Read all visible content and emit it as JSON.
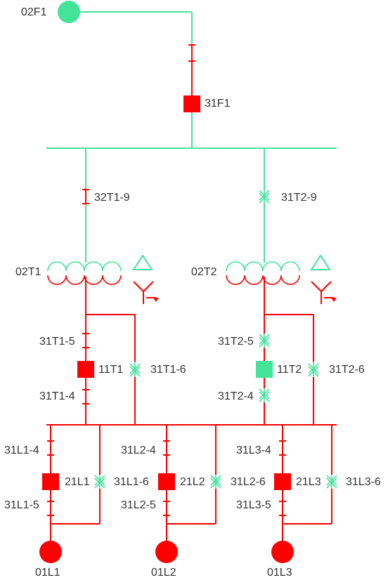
{
  "colors": {
    "energized": "#44e39a",
    "deenergized": "#ff0000",
    "text": "#333333",
    "switch_open": "#ff0000",
    "switch_closed": "#44e39a"
  },
  "labels": {
    "source": "02F1",
    "main_breaker": "31F1",
    "t1_hv_switch": "32T1-9",
    "t2_hv_switch": "31T2-9",
    "t1": "02T1",
    "t2": "02T2",
    "t1_upper_switch": "31T1-5",
    "t1_breaker": "11T1",
    "t1_bypass": "31T1-6",
    "t1_lower_switch": "31T1-4",
    "t2_upper_switch": "31T2-5",
    "t2_breaker": "11T2",
    "t2_bypass": "31T2-6",
    "t2_lower_switch": "31T2-4",
    "l1_upper_switch": "31L1-4",
    "l1_breaker": "21L1",
    "l1_bypass": "31L1-6",
    "l1_lower_switch": "31L1-5",
    "l1_load": "01L1",
    "l2_upper_switch": "31L2-4",
    "l2_breaker": "21L2",
    "l2_bypass": "31L2-6",
    "l2_lower_switch": "31L2-5",
    "l2_load": "01L2",
    "l3_upper_switch": "31L3-4",
    "l3_breaker": "21L3",
    "l3_bypass": "31L3-6",
    "l3_lower_switch": "31L3-5",
    "l3_load": "01L3"
  },
  "states": {
    "main_breaker": "open",
    "t1_breaker": "open",
    "t2_breaker": "closed",
    "t1_hv_switch": "open",
    "t2_hv_switch": "closed",
    "t1_bypass": "closed",
    "t2_bypass": "closed",
    "t2_upper_switch": "closed",
    "t2_lower_switch": "closed",
    "l1_bypass": "closed",
    "l2_bypass": "closed",
    "l3_bypass": "closed"
  }
}
